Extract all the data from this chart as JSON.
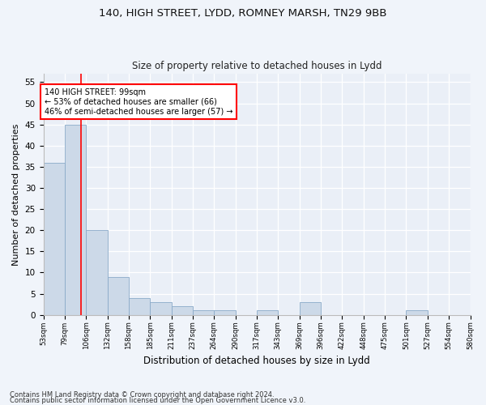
{
  "title1": "140, HIGH STREET, LYDD, ROMNEY MARSH, TN29 9BB",
  "title2": "Size of property relative to detached houses in Lydd",
  "xlabel": "Distribution of detached houses by size in Lydd",
  "ylabel": "Number of detached properties",
  "footnote1": "Contains HM Land Registry data © Crown copyright and database right 2024.",
  "footnote2": "Contains public sector information licensed under the Open Government Licence v3.0.",
  "bar_color": "#ccd9e8",
  "bar_edge_color": "#8aaac8",
  "bins": [
    "53sqm",
    "79sqm",
    "106sqm",
    "132sqm",
    "158sqm",
    "185sqm",
    "211sqm",
    "237sqm",
    "264sqm",
    "290sqm",
    "317sqm",
    "343sqm",
    "369sqm",
    "396sqm",
    "422sqm",
    "448sqm",
    "475sqm",
    "501sqm",
    "527sqm",
    "554sqm",
    "580sqm"
  ],
  "values": [
    36,
    45,
    20,
    9,
    4,
    3,
    2,
    1,
    1,
    0,
    1,
    0,
    3,
    0,
    0,
    0,
    0,
    1,
    0,
    0
  ],
  "ylim": [
    0,
    57
  ],
  "yticks": [
    0,
    5,
    10,
    15,
    20,
    25,
    30,
    35,
    40,
    45,
    50,
    55
  ],
  "annotation_text": "140 HIGH STREET: 99sqm\n← 53% of detached houses are smaller (66)\n46% of semi-detached houses are larger (57) →",
  "vline_x": 1.75,
  "fig_bg": "#f0f4fa",
  "ax_bg": "#eaeff7"
}
